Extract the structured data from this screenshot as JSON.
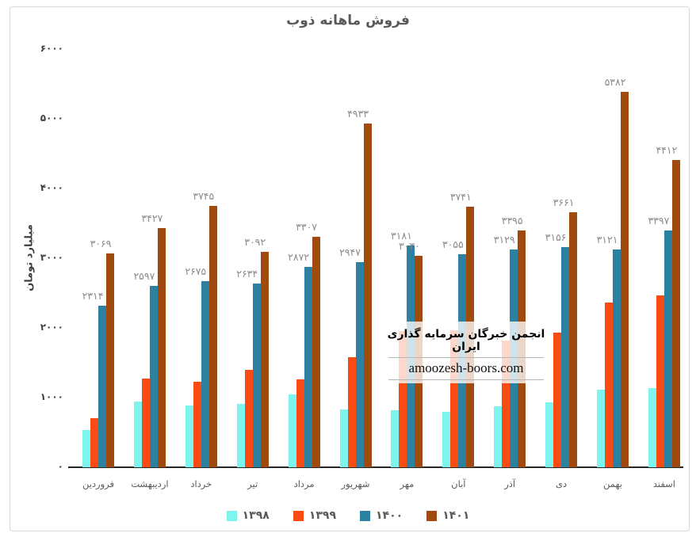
{
  "title": "فروش ماهانه ذوب",
  "y_axis": {
    "label": "میلیارد تومان",
    "ticks": [
      {
        "label": "۰",
        "value": 0
      },
      {
        "label": "۱۰۰۰",
        "value": 1000
      },
      {
        "label": "۲۰۰۰",
        "value": 2000
      },
      {
        "label": "۳۰۰۰",
        "value": 3000
      },
      {
        "label": "۴۰۰۰",
        "value": 4000
      },
      {
        "label": "۵۰۰۰",
        "value": 5000
      },
      {
        "label": "۶۰۰۰",
        "value": 6000
      }
    ]
  },
  "watermark": {
    "line1": "انجمن خبرگان سرمایه گذاری ایران",
    "line2": "amoozesh-boors.com"
  },
  "legend": {
    "items": [
      {
        "label": "۱۳۹۸",
        "color": "#7ef4ee"
      },
      {
        "label": "۱۳۹۹",
        "color": "#fa4b14"
      },
      {
        "label": "۱۴۰۰",
        "color": "#2c80a0"
      },
      {
        "label": "۱۴۰۱",
        "color": "#a04a10"
      }
    ]
  },
  "chart_data": {
    "type": "bar",
    "title": "فروش ماهانه ذوب",
    "xlabel": "",
    "ylabel": "میلیارد تومان",
    "ylim": [
      0,
      6000
    ],
    "grid": false,
    "legend_position": "bottom",
    "categories": [
      "فروردین",
      "اردیبهشت",
      "خرداد",
      "تیر",
      "مرداد",
      "شهریور",
      "مهر",
      "آبان",
      "آذر",
      "دی",
      "بهمن",
      "اسفند"
    ],
    "series": [
      {
        "name": "۱۳۹۸",
        "color": "#7ef4ee",
        "values_estimated_from_bar_heights": true,
        "values": [
          530,
          940,
          885,
          910,
          1045,
          830,
          820,
          795,
          875,
          930,
          1115,
          1135
        ],
        "labels": null
      },
      {
        "name": "۱۳۹۹",
        "color": "#fa4b14",
        "values_estimated_from_bar_heights": true,
        "values": [
          705,
          1270,
          1225,
          1395,
          1260,
          1580,
          1955,
          1965,
          1820,
          1930,
          2365,
          2465
        ],
        "labels": null
      },
      {
        "name": "۱۴۰۰",
        "color": "#2c80a0",
        "values": [
          2314,
          2597,
          2675,
          2634,
          2872,
          2947,
          3181,
          3055,
          3129,
          3156,
          3121,
          3397
        ],
        "labels": [
          "۲۳۱۴",
          "۲۵۹۷",
          "۲۶۷۵",
          "۲۶۳۴",
          "۲۸۷۲",
          "۲۹۴۷",
          "۳۱۸۱",
          "۳۰۵۵",
          "۳۱۲۹",
          "۳۱۵۶",
          "۳۱۲۱",
          "۳۳۹۷"
        ]
      },
      {
        "name": "۱۴۰۱",
        "color": "#a04a10",
        "values": [
          3069,
          3427,
          3745,
          3092,
          3307,
          4933,
          3030,
          3741,
          3395,
          3661,
          5382,
          4412
        ],
        "labels": [
          "۳۰۶۹",
          "۳۴۲۷",
          "۳۷۴۵",
          "۳۰۹۲",
          "۳۳۰۷",
          "۴۹۳۳",
          "۳۰۳۰",
          "۳۷۴۱",
          "۳۳۹۵",
          "۳۶۶۱",
          "۵۳۸۲",
          "۴۴۱۲"
        ]
      }
    ]
  }
}
